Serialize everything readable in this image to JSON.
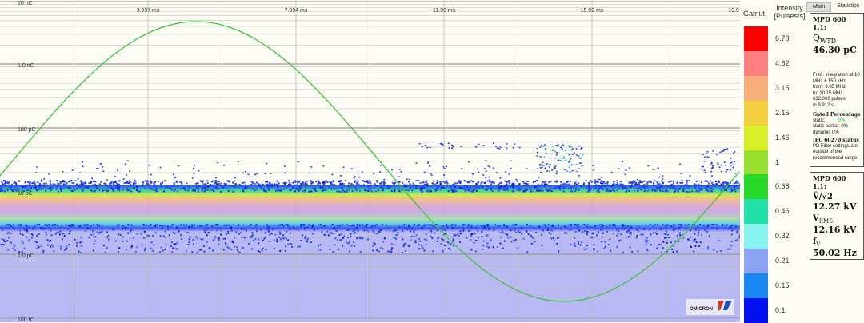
{
  "chart_data": {
    "type": "scatter",
    "x_tick_labels": [
      "3.997 ms",
      "7.994 ms",
      "11.99 ms",
      "15.99 ms",
      "19.9"
    ],
    "xlim_ms": [
      0,
      20
    ],
    "y_tick_labels": [
      "10 nC",
      "1.0 nC",
      "100 pC",
      "10 pC",
      "1.0 pC",
      "100 fC"
    ],
    "y_scale": "log",
    "ylim": [
      "100 fC",
      "10 nC"
    ],
    "grid": true,
    "overlay": "sine voltage curve",
    "overlay_color": "#3ec43e"
  },
  "legend": {
    "gamut_label": "Gamut",
    "intensity_label": "Intensity [Pulses/s]",
    "entries": [
      {
        "value": "6.78",
        "color": "#ff0000"
      },
      {
        "value": "4.62",
        "color": "#ff8080"
      },
      {
        "value": "3.15",
        "color": "#f8ae78"
      },
      {
        "value": "2.15",
        "color": "#f4d040"
      },
      {
        "value": "1.46",
        "color": "#d8f028"
      },
      {
        "value": "1",
        "color": "#98e030"
      },
      {
        "value": "0.68",
        "color": "#28d828"
      },
      {
        "value": "0.46",
        "color": "#20e0a8"
      },
      {
        "value": "0.32",
        "color": "#88f4f0"
      },
      {
        "value": "0.21",
        "color": "#8ca4f4"
      },
      {
        "value": "0.15",
        "color": "#1888f0"
      },
      {
        "value": "0.1",
        "color": "#0010f0"
      }
    ]
  },
  "tabs": [
    "Main",
    "Statistics"
  ],
  "box1": {
    "title": "MPD 600 1.1:",
    "q_label": "Q",
    "q_sub": "WTD",
    "q_value": "46.30 pC",
    "freq": "Freq. integration at 10 MHz ± 150 kHz",
    "from": "from:   9.85 MHz",
    "to": "to:      10.15 MHz",
    "pulses": "632,009 pulses",
    "time": "in 9.912 s",
    "gated_title": "Gated Percentage",
    "static": "static:",
    "static_v": "0%",
    "static_partial": "static partial: 0%",
    "dynamic": "dynamic       0%",
    "iec_title": "IEC 60270 status",
    "iec_text": "PD Filter settings are outside of the recommended range."
  },
  "box2": {
    "title": "MPD 600 1.1:",
    "v1_label": "V̂/√2",
    "v1_value": "12.27 kV",
    "v2_label": "V",
    "v2_sub": "RMS",
    "v2_value": "12.16 kV",
    "f_label": "f",
    "f_sub": "V",
    "f_value": "50.02 Hz"
  },
  "logo": "OMICRON"
}
